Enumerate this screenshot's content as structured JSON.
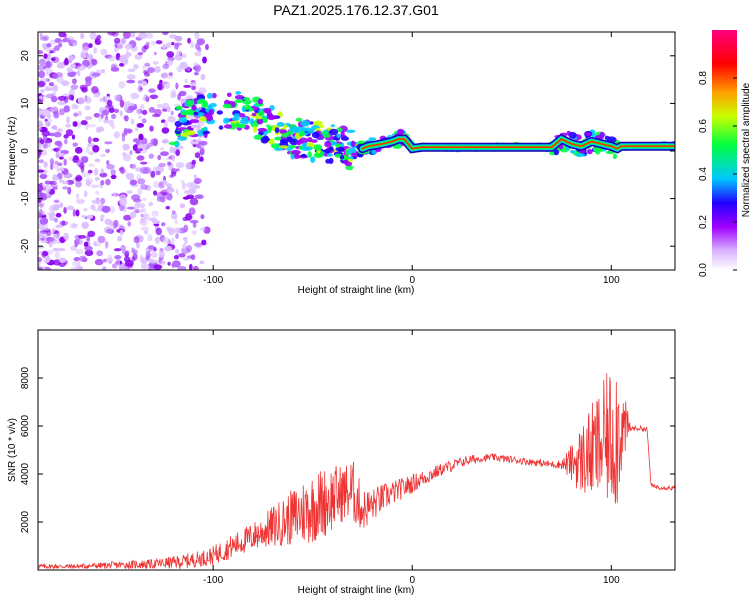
{
  "title": "PAZ1.2025.176.12.37.G01",
  "chart_data": [
    {
      "type": "heatmap",
      "xlabel": "Height of straight line (km)",
      "ylabel": "Frequency (Hz)",
      "xlim": [
        -188,
        132
      ],
      "ylim": [
        -25,
        25
      ],
      "xticks": [
        -100,
        0,
        100
      ],
      "yticks": [
        -20,
        -10,
        0,
        10,
        20
      ],
      "colorbar": {
        "label": "Normalized spectral amplitude",
        "range": [
          0,
          1
        ],
        "ticks": [
          "0.0",
          "0.2",
          "0.4",
          "0.6",
          "0.8"
        ],
        "colors": [
          "#ffffff",
          "#a000ff",
          "#2000ff",
          "#00c8ff",
          "#00ff40",
          "#c8ff00",
          "#ffa000",
          "#ff0000",
          "#ff0080"
        ]
      },
      "ridge": {
        "x": [
          -120,
          -110,
          -100,
          -92,
          -85,
          -78,
          -70,
          -62,
          -55,
          -48,
          -40,
          -33,
          -28,
          -22,
          -15,
          -10,
          -7,
          -4,
          -2,
          0,
          5,
          20,
          40,
          70,
          75,
          80,
          85,
          90,
          95,
          100,
          103,
          105,
          110,
          120,
          132
        ],
        "y": [
          5,
          7,
          8,
          9,
          8,
          7,
          5,
          3,
          2.5,
          2,
          1.5,
          0.5,
          0,
          1,
          1.5,
          2,
          2.5,
          2.5,
          1.5,
          0.5,
          0.8,
          0.8,
          0.8,
          0.8,
          2.5,
          1.5,
          1,
          2,
          1.5,
          1,
          0.5,
          1,
          1,
          1,
          1
        ]
      }
    },
    {
      "type": "line",
      "xlabel": "Height of straight line (km)",
      "ylabel": "SNR (10 * v/v)",
      "xlim": [
        -188,
        132
      ],
      "ylim": [
        0,
        10000
      ],
      "xticks": [
        -100,
        0,
        100
      ],
      "yticks": [
        2000,
        4000,
        6000,
        8000
      ],
      "series": [
        {
          "color": "#ee3333",
          "x": [
            -188,
            -170,
            -150,
            -130,
            -115,
            -105,
            -100,
            -95,
            -90,
            -85,
            -80,
            -75,
            -70,
            -65,
            -60,
            -55,
            -50,
            -45,
            -40,
            -35,
            -30,
            -25,
            -20,
            -15,
            -10,
            -5,
            0,
            5,
            10,
            15,
            20,
            25,
            30,
            35,
            40,
            45,
            50,
            55,
            60,
            65,
            70,
            75,
            80,
            85,
            90,
            95,
            100,
            103,
            105,
            110,
            115,
            118,
            120,
            125,
            132
          ],
          "y": [
            150,
            150,
            200,
            250,
            350,
            500,
            600,
            800,
            1000,
            1200,
            1400,
            1600,
            1800,
            2000,
            2200,
            2400,
            2600,
            2800,
            3000,
            3200,
            3300,
            2500,
            2700,
            3000,
            3200,
            3400,
            3600,
            3800,
            4000,
            4200,
            4350,
            4500,
            4600,
            4650,
            4700,
            4650,
            4600,
            4550,
            4500,
            4450,
            4400,
            4400,
            4450,
            4600,
            4900,
            5200,
            5600,
            5900,
            5900,
            5900,
            5900,
            5850,
            3500,
            3450,
            3400
          ],
          "amplitude": [
            100,
            100,
            150,
            200,
            300,
            350,
            400,
            450,
            500,
            550,
            600,
            700,
            900,
            1000,
            1200,
            1400,
            1500,
            1500,
            1400,
            1200,
            1400,
            900,
            700,
            600,
            500,
            450,
            400,
            350,
            300,
            250,
            250,
            200,
            200,
            150,
            150,
            150,
            150,
            150,
            150,
            150,
            150,
            200,
            800,
            1500,
            2000,
            2500,
            3000,
            3500,
            2000,
            100,
            100,
            100,
            100,
            100,
            100
          ]
        }
      ]
    }
  ]
}
